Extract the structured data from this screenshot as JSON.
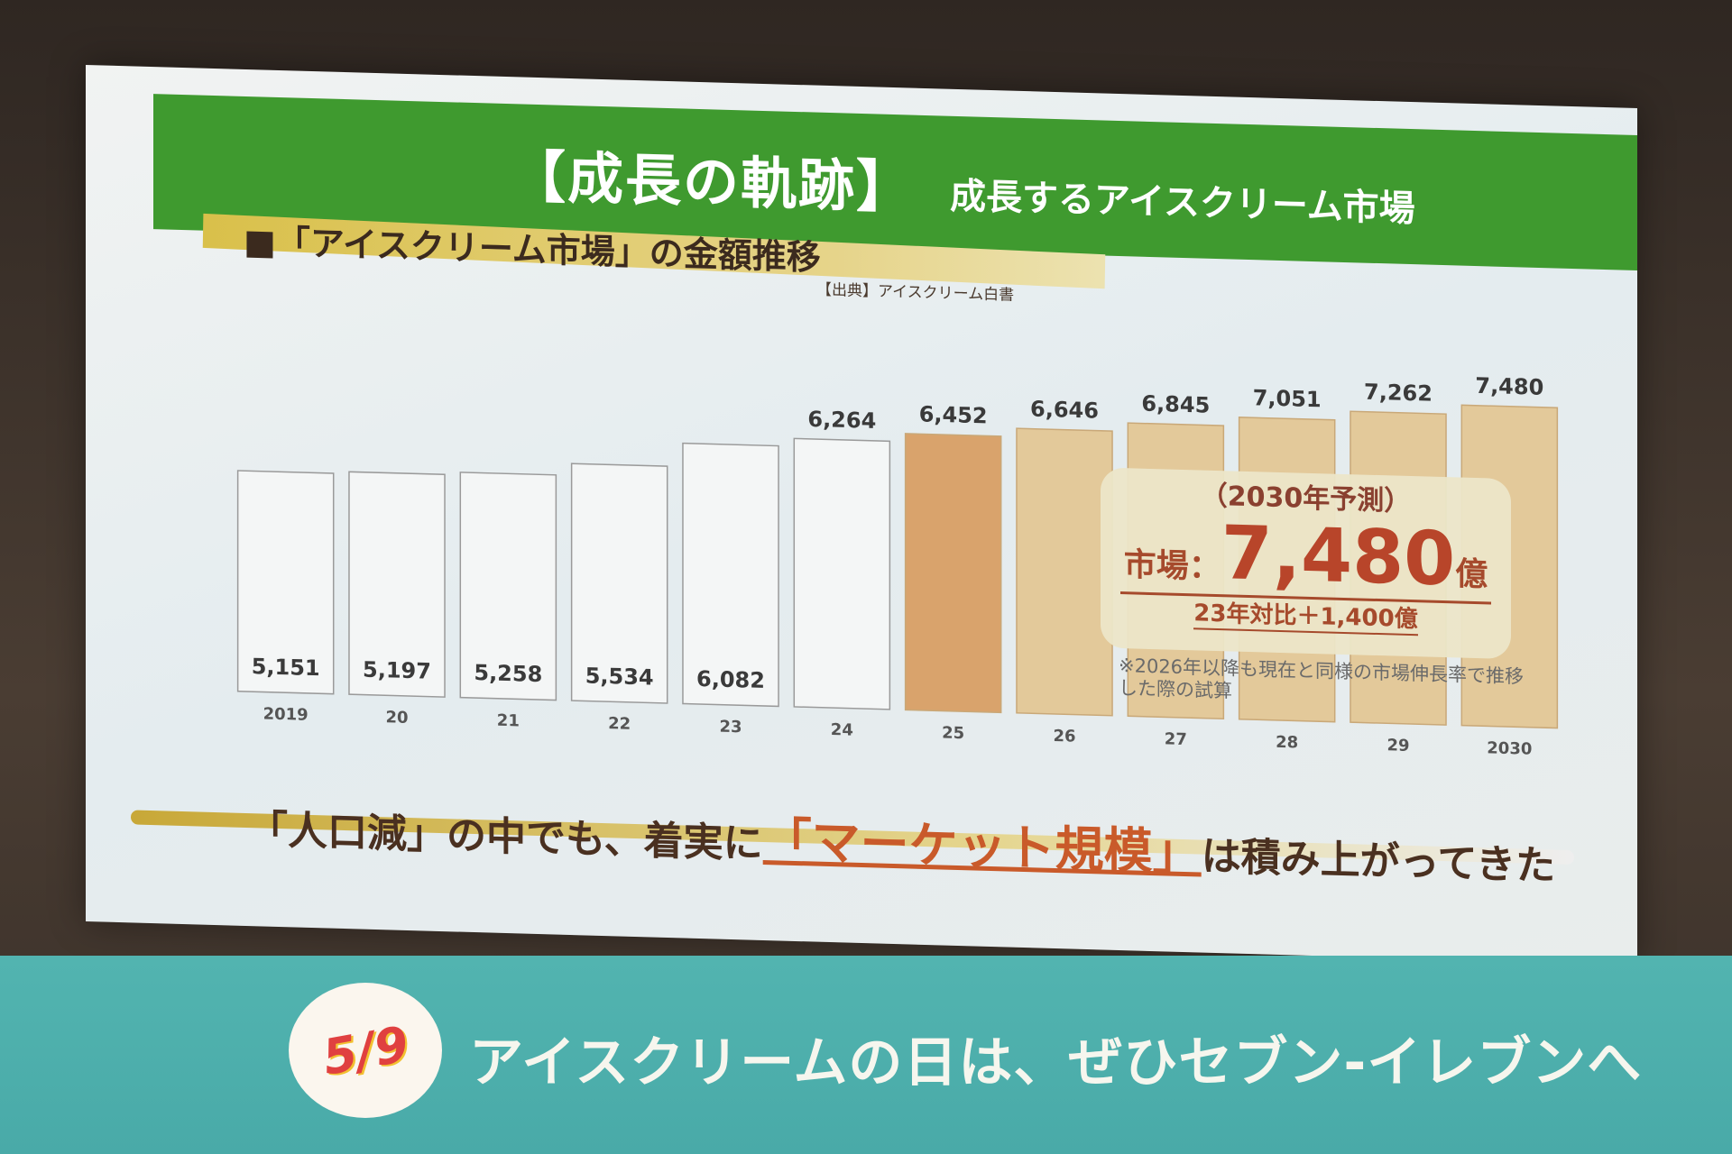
{
  "slide": {
    "header_title": "【成長の軌跡】",
    "header_subtitle": "成長するアイスクリーム市場",
    "section_title": "■「アイスクリーム市場」の金額推移",
    "source": "【出典】アイスクリーム白書",
    "callout": {
      "label": "（2030年予測）",
      "prefix": "市場：",
      "value": "7,480",
      "unit": "億",
      "comparison": "23年対比＋1,400億"
    },
    "note": "※2026年以降も現在と同様の市場伸長率で推移した際の試算",
    "footer_pre": "「人口減」の中でも、着実に",
    "footer_highlight": "「マーケット規模」",
    "footer_post": "は積み上がってきた"
  },
  "banner": {
    "date_badge": "5/9",
    "text": "アイスクリームの日は、ぜひセブン-イレブンへ"
  },
  "chart_data": {
    "type": "bar",
    "categories": [
      "2019",
      "20",
      "21",
      "22",
      "23",
      "24",
      "25",
      "26",
      "27",
      "28",
      "29",
      "2030"
    ],
    "values": [
      5151,
      5197,
      5258,
      5534,
      6082,
      6264,
      6452,
      6646,
      6845,
      7051,
      7262,
      7480
    ],
    "value_labels": [
      "5,151",
      "5,197",
      "5,258",
      "5,534",
      "6,082",
      "6,264",
      "6,452",
      "6,646",
      "6,845",
      "7,051",
      "7,262",
      "7,480"
    ],
    "ylim": [
      0,
      8000
    ],
    "grid": false,
    "legend": "none",
    "colors": {
      "actual": "#f4f6f6",
      "current": "#d9a36c",
      "forecast": "#e3c99a",
      "outline": "#9a9a9a"
    }
  }
}
